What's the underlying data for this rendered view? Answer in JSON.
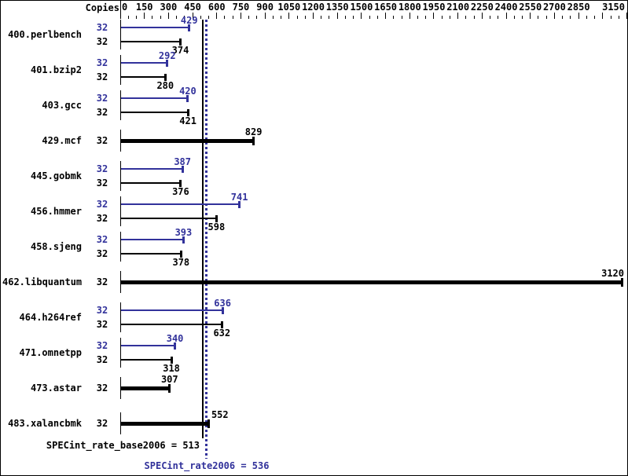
{
  "colors": {
    "peak_blue": "#32329b",
    "base_black": "#000000",
    "background": "#ffffff"
  },
  "header": {
    "copies_label": "Copies"
  },
  "chart_data": {
    "type": "bar",
    "orientation": "horizontal",
    "title": "SPEC CPU2006 integer rate result bar chart",
    "x_axis": {
      "min": 0,
      "max": 3163,
      "major_tick_step": 150,
      "minor_tick_step": 50,
      "major_tick_values": [
        0,
        150,
        300,
        450,
        600,
        750,
        900,
        1050,
        1200,
        1350,
        1500,
        1650,
        1800,
        1950,
        2100,
        2250,
        2400,
        2550,
        2700,
        2850,
        3000,
        3150
      ],
      "major_tick_labels": [
        "0",
        "150",
        "300",
        "450",
        "600",
        "750",
        "900",
        "1050",
        "1200",
        "1350",
        "1500",
        "1650",
        "1800",
        "1950",
        "2100",
        "2250",
        "2400",
        "2550",
        "2700",
        "2850",
        "",
        "3150"
      ]
    },
    "copies_column_header": "Copies",
    "benchmarks": [
      {
        "name": "400.perlbench",
        "copies": 32,
        "peak": 429,
        "base": 374
      },
      {
        "name": "401.bzip2",
        "copies": 32,
        "peak": 292,
        "base": 280
      },
      {
        "name": "403.gcc",
        "copies": 32,
        "peak": 420,
        "base": 421
      },
      {
        "name": "429.mcf",
        "copies": 32,
        "single": 829
      },
      {
        "name": "445.gobmk",
        "copies": 32,
        "peak": 387,
        "base": 376
      },
      {
        "name": "456.hmmer",
        "copies": 32,
        "peak": 741,
        "base": 598
      },
      {
        "name": "458.sjeng",
        "copies": 32,
        "peak": 393,
        "base": 378
      },
      {
        "name": "462.libquantum",
        "copies": 32,
        "single": 3120
      },
      {
        "name": "464.h264ref",
        "copies": 32,
        "peak": 636,
        "base": 632
      },
      {
        "name": "471.omnetpp",
        "copies": 32,
        "peak": 340,
        "base": 318
      },
      {
        "name": "473.astar",
        "copies": 32,
        "single": 307
      },
      {
        "name": "483.xalancbmk",
        "copies": 32,
        "single": 552
      }
    ],
    "reference_lines": [
      {
        "name": "base",
        "value": 513,
        "style": "solid",
        "color": "#000000",
        "label": "SPECint_rate_base2006 = 513"
      },
      {
        "name": "peak",
        "value": 536,
        "style": "dotted",
        "color": "#32329b",
        "label": "SPECint_rate2006 = 536"
      }
    ]
  }
}
